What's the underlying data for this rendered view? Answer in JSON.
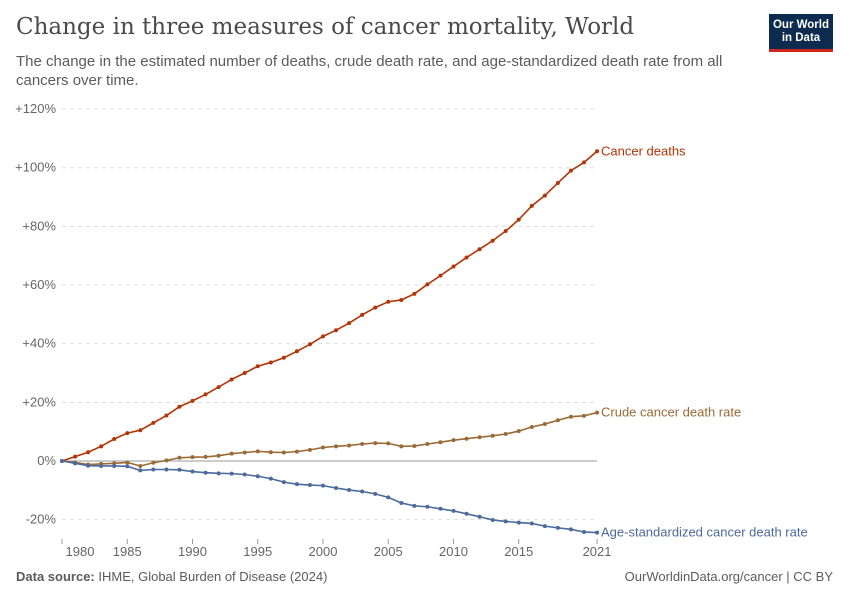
{
  "header": {
    "title": "Change in three measures of cancer mortality, World",
    "subtitle": "The change in the estimated number of deaths, crude death rate, and age-standardized death rate from all cancers over time.",
    "logo_line1": "Our World",
    "logo_line2": "in Data"
  },
  "footer": {
    "source_label": "Data source:",
    "source": "IHME, Global Burden of Disease (2024)",
    "right": "OurWorldinData.org/cancer | CC BY"
  },
  "chart_data": {
    "type": "line",
    "title": "Change in three measures of cancer mortality, World",
    "ylim": [
      -24.4,
      120
    ],
    "y_ticks": [
      -20,
      0,
      20,
      40,
      60,
      80,
      100,
      120
    ],
    "y_tick_labels": [
      "-20%",
      "0%",
      "+20%",
      "+40%",
      "+60%",
      "+80%",
      "+100%",
      "+120%"
    ],
    "x_ticks": [
      1980,
      1985,
      1990,
      1995,
      2000,
      2005,
      2010,
      2015,
      2021
    ],
    "x_tick_labels": [
      "1980",
      "1985",
      "1990",
      "1995",
      "2000",
      "2005",
      "2010",
      "2015",
      "2021"
    ],
    "grid": "horizontal dashed",
    "legend": "line-end labels",
    "x": [
      1980,
      1981,
      1982,
      1983,
      1984,
      1985,
      1986,
      1987,
      1988,
      1989,
      1990,
      1991,
      1992,
      1993,
      1994,
      1995,
      1996,
      1997,
      1998,
      1999,
      2000,
      2001,
      2002,
      2003,
      2004,
      2005,
      2006,
      2007,
      2008,
      2009,
      2010,
      2011,
      2012,
      2013,
      2014,
      2015,
      2016,
      2017,
      2018,
      2019,
      2020,
      2021
    ],
    "series": [
      {
        "name": "Cancer deaths",
        "color": "#b13507",
        "values": [
          0,
          1.5,
          3,
          5,
          7.5,
          9.5,
          10.5,
          13,
          15.5,
          18.5,
          20.5,
          22.7,
          25.2,
          27.8,
          30,
          32.3,
          33.6,
          35.2,
          37.4,
          39.8,
          42.5,
          44.6,
          47,
          49.8,
          52.3,
          54.3,
          54.9,
          57,
          60.2,
          63.2,
          66.3,
          69.4,
          72.2,
          75.1,
          78.4,
          82.3,
          87,
          90.5,
          94.8,
          99,
          101.8,
          105.6
        ]
      },
      {
        "name": "Crude cancer death rate",
        "color": "#9a6b36",
        "values": [
          0,
          -0.5,
          -1.2,
          -1,
          -0.8,
          -0.5,
          -1.7,
          -0.6,
          0.2,
          1.1,
          1.3,
          1.4,
          1.8,
          2.5,
          2.9,
          3.3,
          3.0,
          2.9,
          3.2,
          3.8,
          4.6,
          5.0,
          5.3,
          5.8,
          6.1,
          6.0,
          5.0,
          5.1,
          5.8,
          6.4,
          7.1,
          7.6,
          8.1,
          8.6,
          9.2,
          10.2,
          11.6,
          12.6,
          13.9,
          15.1,
          15.4,
          16.5
        ]
      },
      {
        "name": "Age-standardized cancer death rate",
        "color": "#4c6a9c",
        "values": [
          0,
          -0.8,
          -1.6,
          -1.7,
          -1.7,
          -1.8,
          -3.2,
          -2.9,
          -2.9,
          -3.0,
          -3.6,
          -4.0,
          -4.2,
          -4.3,
          -4.6,
          -5.2,
          -6.0,
          -7.2,
          -7.9,
          -8.2,
          -8.4,
          -9.2,
          -9.9,
          -10.4,
          -11.2,
          -12.4,
          -14.3,
          -15.3,
          -15.6,
          -16.3,
          -17.0,
          -18.0,
          -19.0,
          -20.1,
          -20.6,
          -21.0,
          -21.3,
          -22.2,
          -22.8,
          -23.3,
          -24.2,
          -24.4
        ]
      }
    ]
  }
}
